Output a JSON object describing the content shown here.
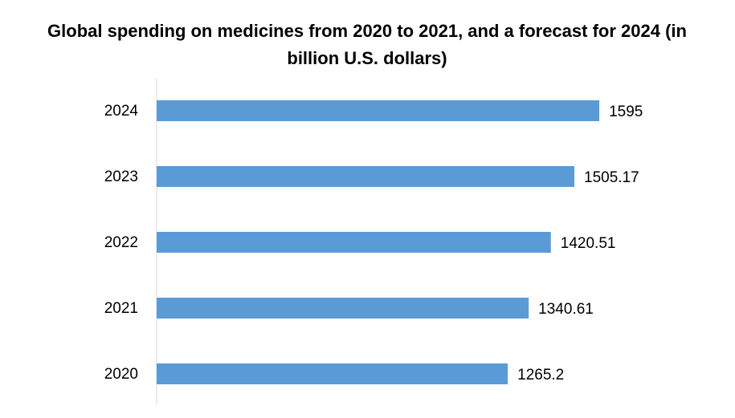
{
  "chart_data": {
    "type": "bar",
    "orientation": "horizontal",
    "title": "Global spending on medicines from 2020 to 2021, and a forecast for 2024 (in billion U.S. dollars)",
    "categories": [
      "2020",
      "2021",
      "2022",
      "2023",
      "2024"
    ],
    "values": [
      1265.2,
      1340.61,
      1420.51,
      1505.17,
      1595
    ],
    "color": "#5b9bd5",
    "xlim": [
      0,
      2000
    ],
    "grid": false
  }
}
